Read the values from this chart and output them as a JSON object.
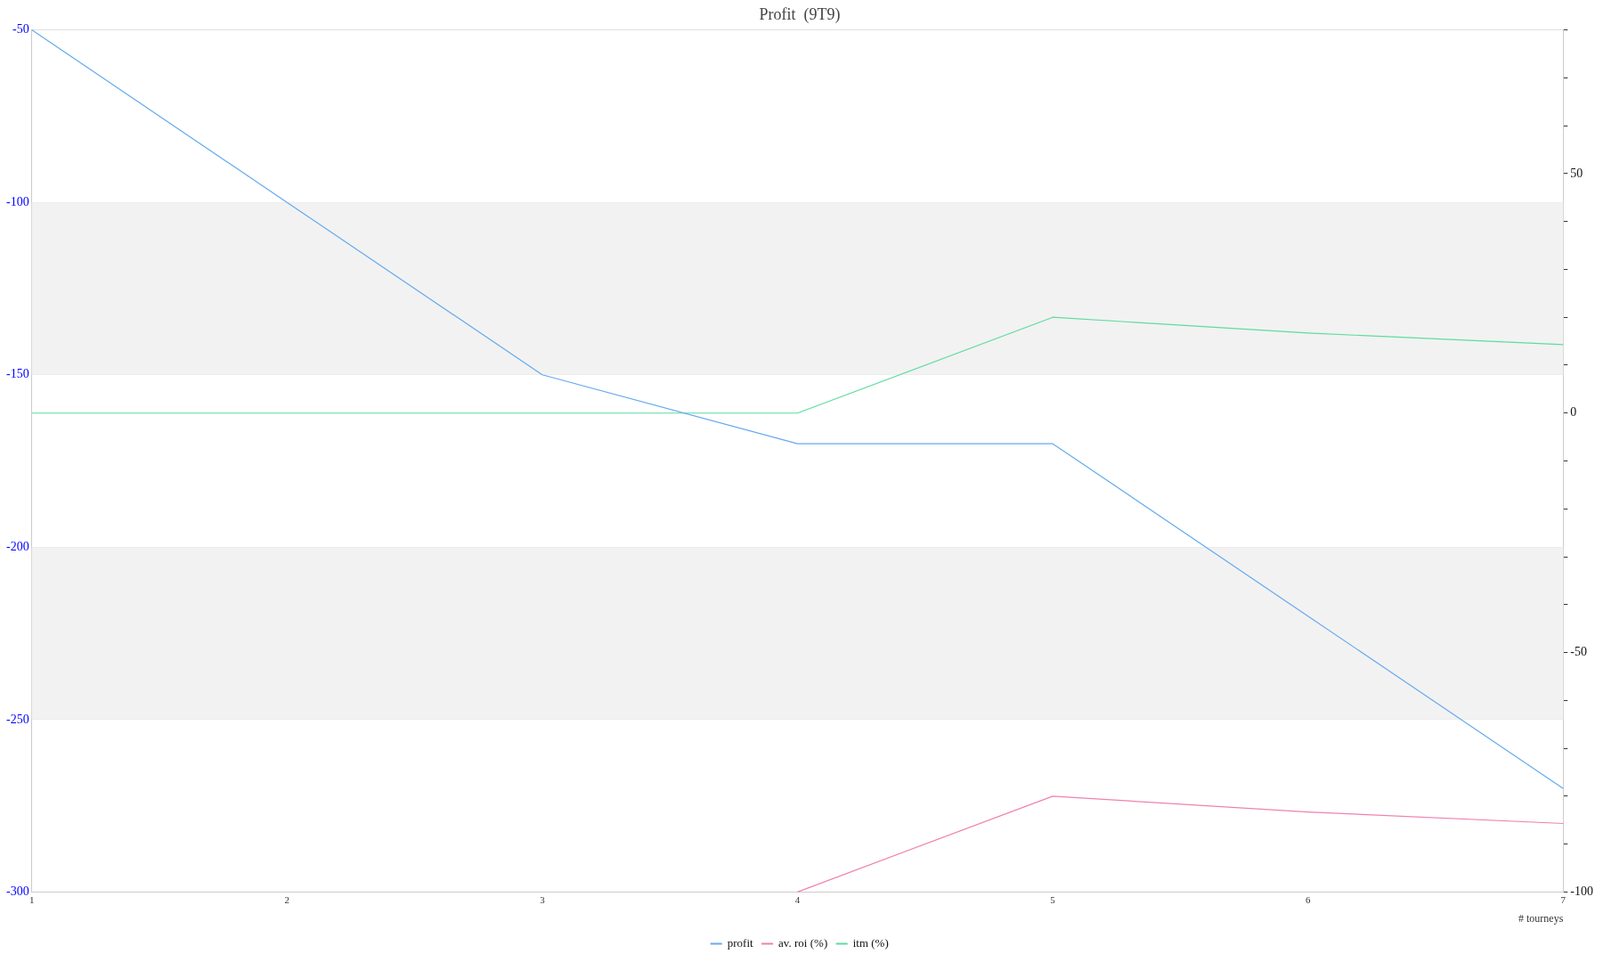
{
  "chart_data": {
    "type": "line",
    "title": "Profit  (9T9)",
    "xlabel": "# tourneys",
    "x": [
      1,
      2,
      3,
      4,
      5,
      6,
      7
    ],
    "xlim": [
      1,
      7
    ],
    "xticks": [
      1,
      2,
      3,
      4,
      5,
      6,
      7
    ],
    "ylim": [
      -300,
      -50
    ],
    "yticks": [
      -300,
      -250,
      -200,
      -150,
      -100,
      -50
    ],
    "y2lim": [
      -100,
      80
    ],
    "y2ticks": [
      -100,
      {
        "value": -90,
        "label": null
      },
      {
        "value": -80,
        "label": null
      },
      {
        "value": -70,
        "label": null
      },
      {
        "value": -60,
        "label": null
      },
      -50,
      {
        "value": -40,
        "label": null
      },
      {
        "value": -30,
        "label": null
      },
      {
        "value": -20,
        "label": null
      },
      {
        "value": -10,
        "label": null
      },
      0,
      {
        "value": 10,
        "label": null
      },
      {
        "value": 20,
        "label": null
      },
      {
        "value": 30,
        "label": null
      },
      {
        "value": 40,
        "label": null
      },
      50,
      {
        "value": 60,
        "label": null
      },
      {
        "value": 70,
        "label": null
      },
      {
        "value": 80,
        "label": null
      }
    ],
    "series": [
      {
        "name": "profit",
        "color": "#66aaee",
        "values": [
          -50,
          -100,
          -150,
          -170,
          -170,
          -220,
          -270
        ]
      },
      {
        "name": "av. roi (%)",
        "color": "#f080b0",
        "axis": "y2",
        "values": [
          null,
          null,
          null,
          -100,
          -80,
          -83.3,
          -85.7
        ]
      },
      {
        "name": "itm (%)",
        "color": "#5ddca0",
        "axis": "y2",
        "values": [
          0,
          0,
          0,
          0,
          20,
          16.7,
          14.3
        ]
      }
    ],
    "bands": [
      {
        "axis": "y",
        "from": -150,
        "to": -100,
        "color": "#f2f2f2"
      },
      {
        "axis": "y",
        "from": -250,
        "to": -200,
        "color": "#f2f2f2"
      }
    ],
    "grid": "y",
    "legend": "bottom",
    "marker": "none",
    "line_style": "solid"
  }
}
